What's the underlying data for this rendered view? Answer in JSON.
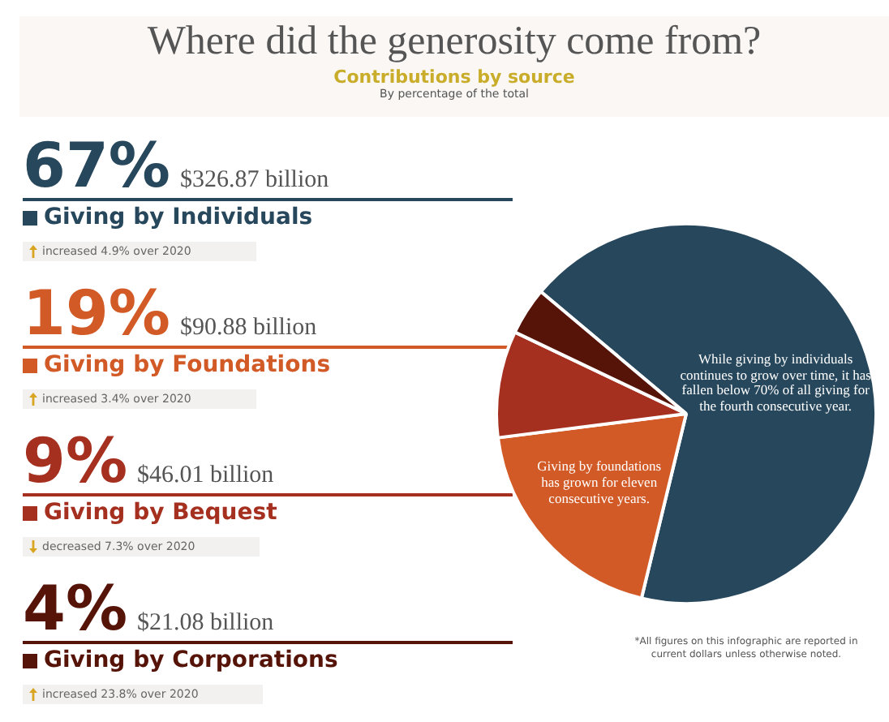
{
  "chart_data": {
    "type": "pie",
    "title": "Where did the generosity come from?",
    "subtitle": "Contributions by source",
    "categories": [
      "Giving by Individuals",
      "Giving by Foundations",
      "Giving by Bequest",
      "Giving by Corporations"
    ],
    "values": [
      67,
      19,
      9,
      4
    ],
    "colors": [
      "#27475c",
      "#d25a26",
      "#a5301f",
      "#561409"
    ],
    "value_labels": [
      "67%",
      "19%",
      "9%",
      "4%"
    ],
    "legend": "left",
    "annotations": [
      "By percentage of the total",
      "$326.87 billion",
      "increased 4.9% over 2020",
      "$90.88 billion",
      "increased 3.4% over 2020",
      "$46.01 billion",
      "decreased 7.3% over 2020",
      "$21.08 billion",
      "increased 23.8% over 2020",
      "While giving by individuals continues to grow over time, it has fallen below 70% of all giving for the fourth consecutive year.",
      "Giving by foundations has grown for eleven consecutive years.",
      "*All figures on this infographic are reported in current dollars unless otherwise noted."
    ]
  }
}
